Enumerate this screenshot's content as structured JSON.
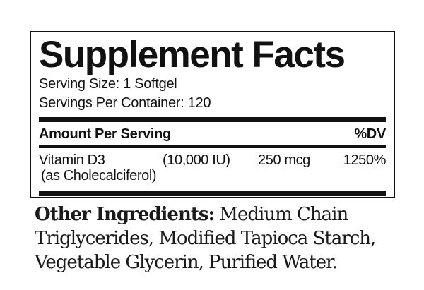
{
  "supplement_facts": {
    "title": "Supplement Facts",
    "serving_size": "Serving Size: 1 Softgel",
    "servings_per_container": "Servings Per Container: 120",
    "header": {
      "amount_per_serving": "Amount Per Serving",
      "dv": "%DV"
    },
    "rows": [
      {
        "name": "Vitamin D3",
        "name_detail": "(as Cholecalciferol)",
        "strength": "(10,000 IU)",
        "amount": "250 mcg",
        "daily_value": "1250%"
      }
    ]
  },
  "other_ingredients": {
    "label": "Other Ingredients:",
    "line1_rest": " Medium Chain",
    "line2": "Triglycerides, Modified Tapioca Starch,",
    "line3": "Vegetable Glycerin, Purified Water."
  },
  "colors": {
    "ink": "#111111",
    "background": "#ffffff"
  }
}
